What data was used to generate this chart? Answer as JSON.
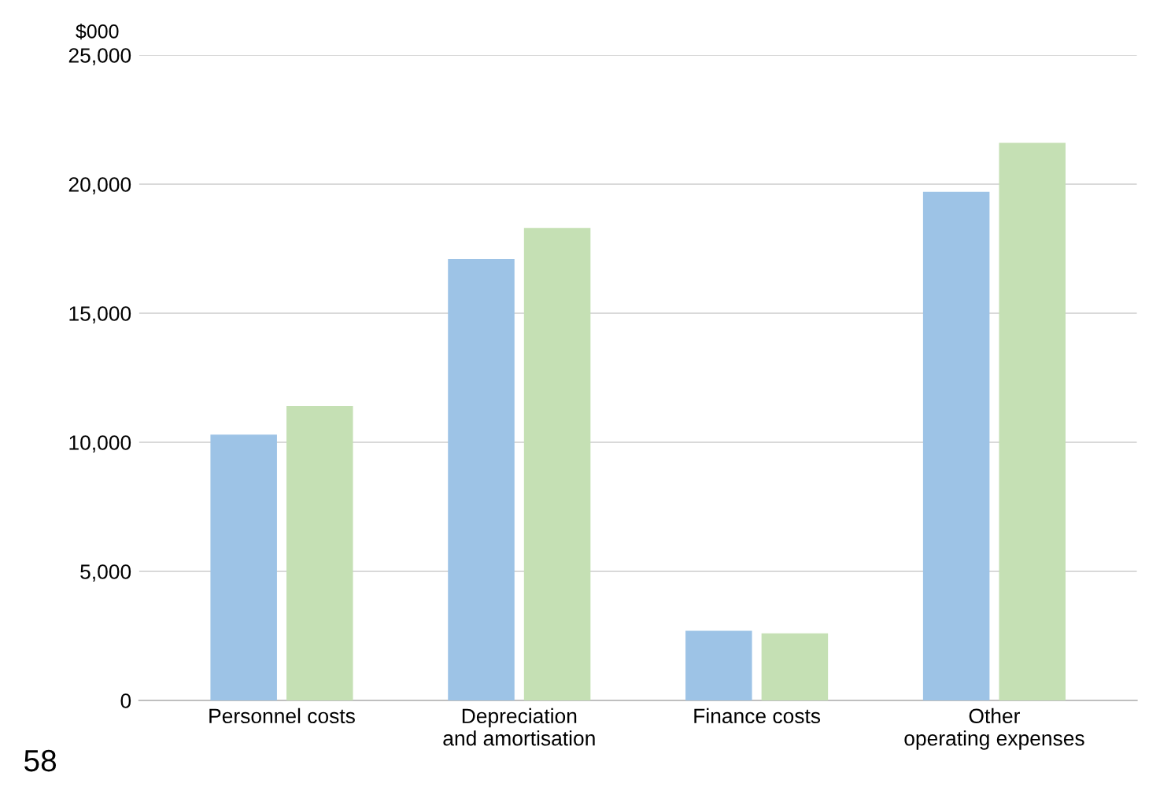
{
  "chart_data": {
    "type": "bar",
    "ylabel": "$000",
    "categories": [
      "Personnel costs",
      "Depreciation and amortisation",
      "Finance costs",
      "Other operating expenses"
    ],
    "series": [
      {
        "color": "#9dc3e6",
        "values": [
          10300,
          17100,
          2700,
          19700
        ]
      },
      {
        "color": "#c5e0b4",
        "values": [
          11400,
          18300,
          2600,
          21600
        ]
      }
    ],
    "ylim": [
      0,
      25000
    ],
    "yticks": [
      0,
      {
        "value": 5000,
        "label": "5,000"
      },
      {
        "value": 10000,
        "label": "10,000"
      },
      {
        "value": 15000,
        "label": "15,000"
      },
      {
        "value": 20000,
        "label": "20,000"
      },
      {
        "value": 25000,
        "label": "25,000"
      }
    ],
    "grid": "y",
    "annotations": [
      "58"
    ]
  }
}
